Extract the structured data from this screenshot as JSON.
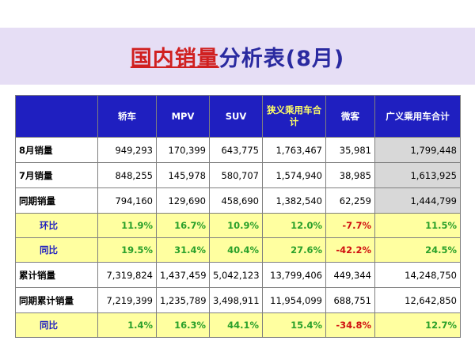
{
  "title": {
    "part1": "国内销量",
    "part2": "分析表(8月)"
  },
  "columns": [
    "轿车",
    "MPV",
    "SUV",
    "狭义乘用车合计",
    "微客",
    "广义乘用车合计"
  ],
  "rows": [
    {
      "label": "8月销量",
      "values": [
        "949,293",
        "170,399",
        "643,775",
        "1,763,467",
        "35,981",
        "1,799,448"
      ]
    },
    {
      "label": "7月销量",
      "values": [
        "848,255",
        "145,978",
        "580,707",
        "1,574,940",
        "38,985",
        "1,613,925"
      ]
    },
    {
      "label": "同期销量",
      "values": [
        "794,160",
        "129,690",
        "458,690",
        "1,382,540",
        "62,259",
        "1,444,799"
      ]
    },
    {
      "label": "环比",
      "values": [
        "11.9%",
        "16.7%",
        "10.9%",
        "12.0%",
        "-7.7%",
        "11.5%"
      ]
    },
    {
      "label": "同比",
      "values": [
        "19.5%",
        "31.4%",
        "40.4%",
        "27.6%",
        "-42.2%",
        "24.5%"
      ]
    },
    {
      "label": "累计销量",
      "values": [
        "7,319,824",
        "1,437,459",
        "5,042,123",
        "13,799,406",
        "449,344",
        "14,248,750"
      ]
    },
    {
      "label": "同期累计销量",
      "values": [
        "7,219,399",
        "1,235,789",
        "3,498,911",
        "11,954,099",
        "688,751",
        "12,642,850"
      ]
    },
    {
      "label": "同比",
      "values": [
        "1.4%",
        "16.3%",
        "44.1%",
        "15.4%",
        "-34.8%",
        "12.7%"
      ]
    }
  ],
  "colors": {
    "header_bg": "#1f1fc0",
    "ratio_bg": "#ffffa0",
    "positive": "#2aa02a",
    "negative": "#d01010",
    "title_band": "#e6def5"
  }
}
